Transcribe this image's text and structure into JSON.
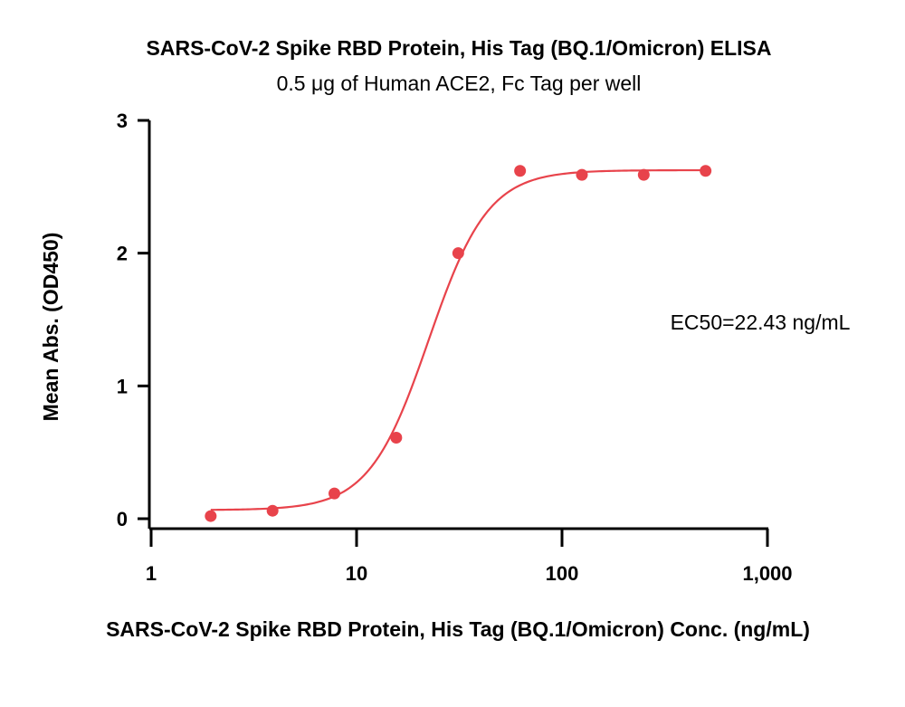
{
  "chart_data": {
    "type": "scatter",
    "title": "SARS-CoV-2 Spike RBD Protein, His Tag (BQ.1/Omicron) ELISA",
    "subtitle": "0.5 μg of Human ACE2, Fc Tag per well",
    "xlabel": "SARS-CoV-2 Spike RBD Protein, His Tag (BQ.1/Omicron) Conc. (ng/mL)",
    "ylabel": "Mean Abs. (OD450)",
    "x_scale": "log",
    "xlim": [
      1,
      1000
    ],
    "ylim": [
      0,
      3
    ],
    "x_ticks": [
      1,
      10,
      100,
      1000
    ],
    "x_tick_labels": [
      "1",
      "10",
      "100",
      "1,000"
    ],
    "y_ticks": [
      0,
      1,
      2,
      3
    ],
    "y_tick_labels": [
      "0",
      "1",
      "2",
      "3"
    ],
    "grid": false,
    "annotation": "EC50=22.43 ng/mL",
    "color": "#e8434b",
    "points": {
      "x": [
        1.95,
        3.9,
        7.8,
        15.6,
        31.25,
        62.5,
        125,
        250,
        500
      ],
      "y": [
        0.02,
        0.06,
        0.19,
        0.61,
        2.0,
        2.62,
        2.59,
        2.59,
        2.62
      ]
    },
    "fit": {
      "model": "4PL",
      "bottom": 0.065,
      "top": 2.625,
      "ec50": 22.43,
      "hill": 3.0,
      "x_range": [
        1.95,
        500
      ]
    }
  }
}
